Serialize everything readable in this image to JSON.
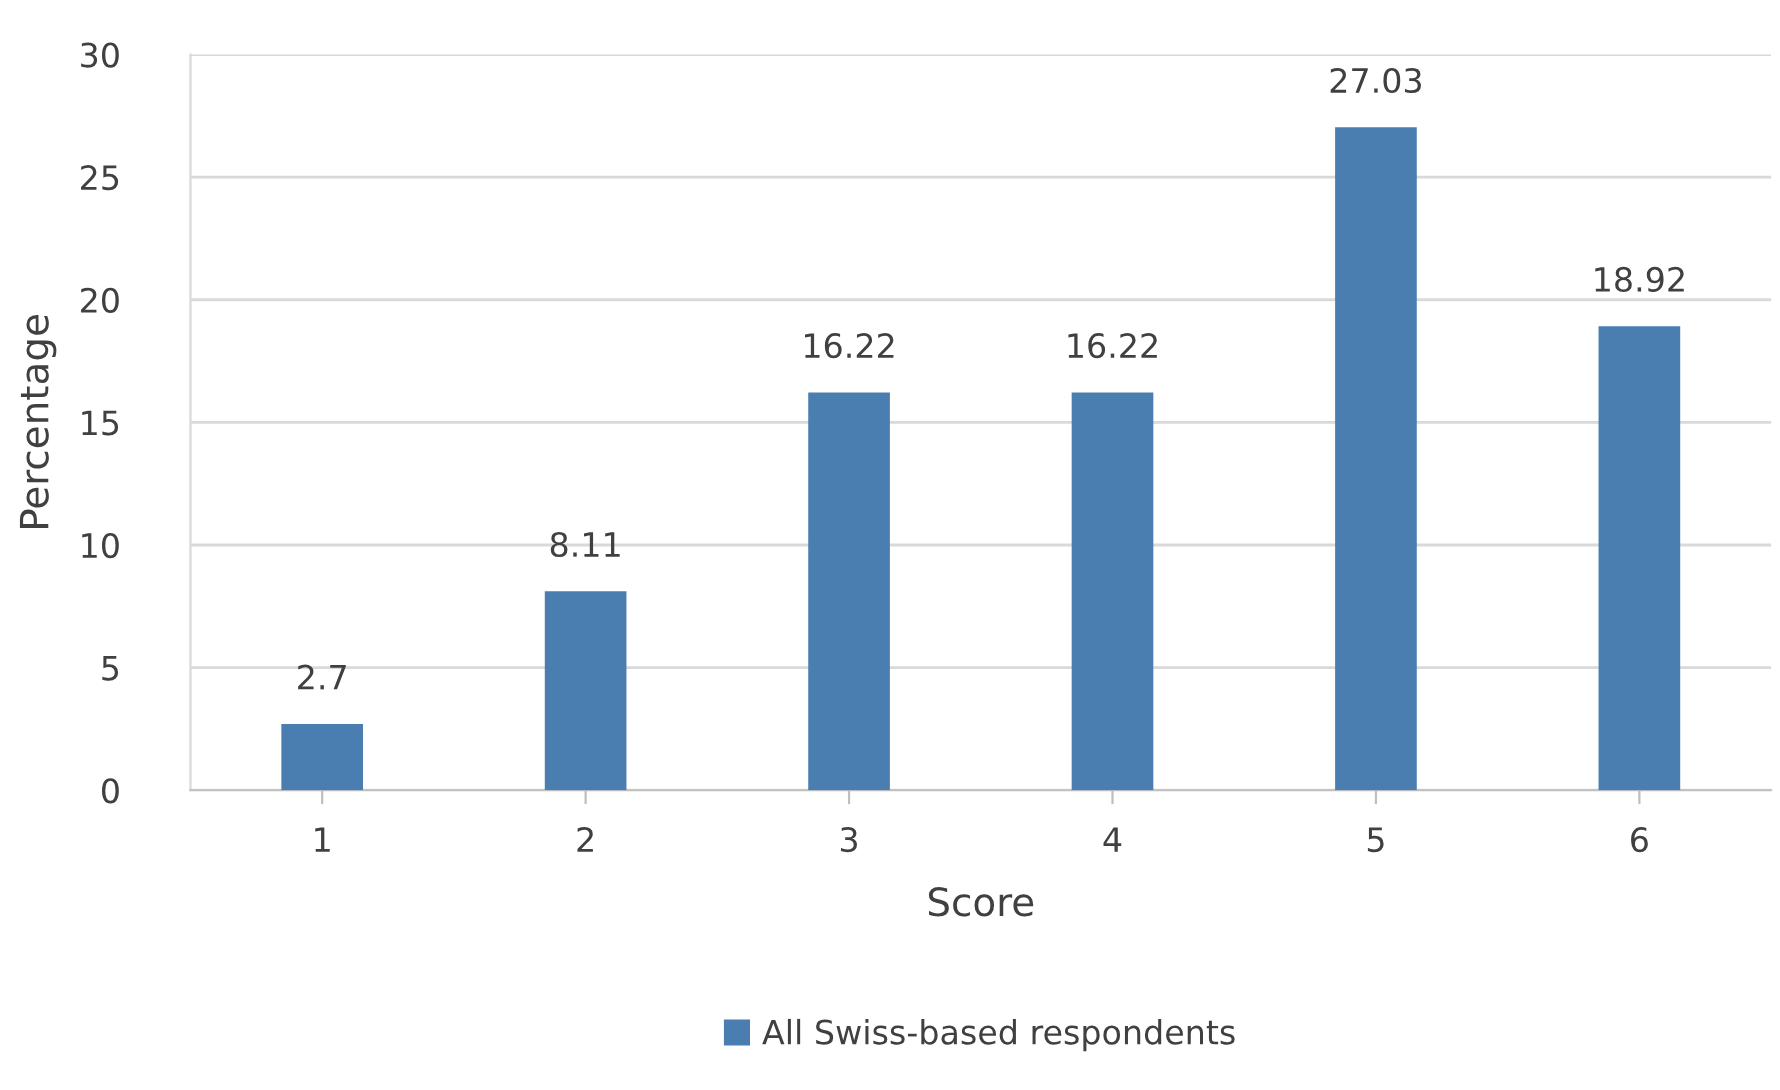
{
  "chart_data": {
    "type": "bar",
    "xlabel": "Score",
    "ylabel": "Percentage",
    "categories": [
      "1",
      "2",
      "3",
      "4",
      "5",
      "6"
    ],
    "series": [
      {
        "name": "All Swiss-based respondents",
        "color": "#4a7eb0",
        "values": [
          2.7,
          8.11,
          16.22,
          16.22,
          27.03,
          18.92
        ]
      }
    ],
    "ylim": [
      0,
      30
    ],
    "yticks": [
      0,
      5,
      10,
      15,
      20,
      25,
      30
    ],
    "grid": "y",
    "legend": "bottom",
    "data_labels": true
  }
}
